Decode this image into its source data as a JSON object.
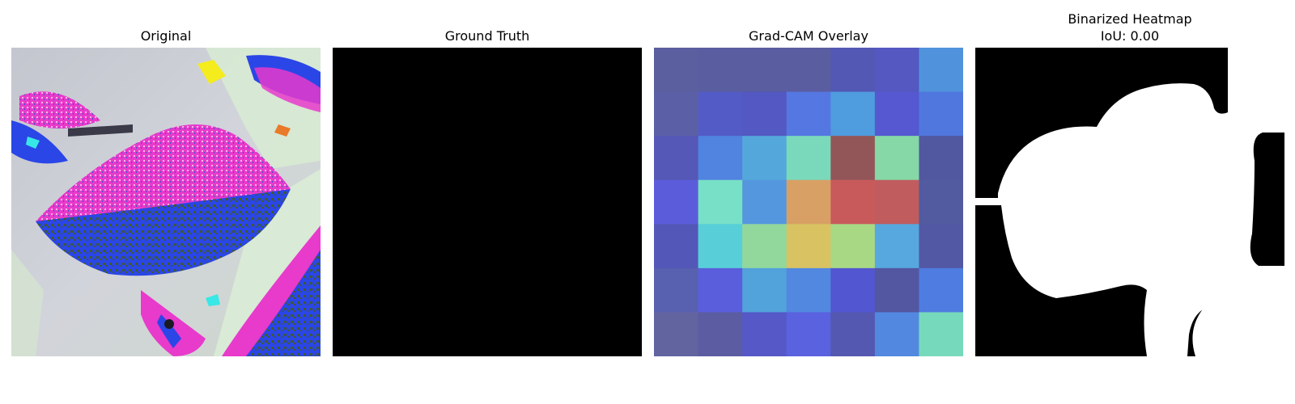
{
  "panels": [
    {
      "id": "original",
      "title": "Original"
    },
    {
      "id": "ground-truth",
      "title": "Ground Truth"
    },
    {
      "id": "gradcam",
      "title": "Grad-CAM Overlay"
    },
    {
      "id": "binarized",
      "title": "Binarized Heatmap",
      "subtitle": "IoU: 0.00"
    }
  ],
  "gradcam_grid": [
    [
      "#5b5e9f",
      "#5a5ea0",
      "#5a5ea0",
      "#5a5ea0",
      "#5358b4",
      "#5458c0",
      "#5093dc"
    ],
    [
      "#5b60a6",
      "#535bc6",
      "#5358c2",
      "#5577e2",
      "#4f9cde",
      "#5558d0",
      "#5077de"
    ],
    [
      "#5558b6",
      "#5183e0",
      "#54a7da",
      "#7ad9bb",
      "#935658",
      "#86d8a6",
      "#5258a0"
    ],
    [
      "#5a5cda",
      "#77e0c6",
      "#5497de",
      "#d8a064",
      "#c85a5c",
      "#c05c5e",
      "#525aa0"
    ],
    [
      "#5358b8",
      "#58cfd8",
      "#92d89c",
      "#d8c262",
      "#a8d884",
      "#56a8de",
      "#5358a4"
    ],
    [
      "#5860b0",
      "#5a5edc",
      "#52a2dc",
      "#5288e0",
      "#5256d0",
      "#5356a0",
      "#4f7ce0"
    ],
    [
      "#6264a0",
      "#5c5ca2",
      "#5558c6",
      "#5a62e0",
      "#5558b0",
      "#5288e0",
      "#77d9bb"
    ]
  ],
  "colors": {
    "leaf_magenta": "#e83acb",
    "leaf_blue": "#2b46e6",
    "leaf_green": "#3e5a2e",
    "background_gray": "#c9cbd3",
    "background_green": "#d7ead3",
    "spot_yellow": "#f4ec1c",
    "spot_cyan": "#37e8e6",
    "mask_black": "#000000",
    "mask_white": "#ffffff"
  }
}
